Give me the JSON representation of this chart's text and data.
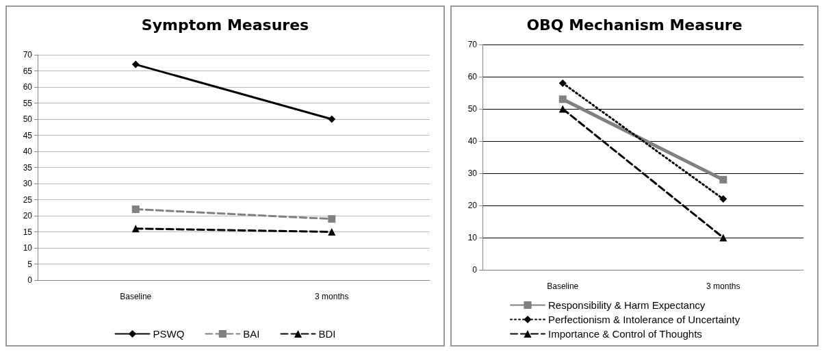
{
  "chart_data": [
    {
      "type": "line",
      "title": "Symptom Measures",
      "categories": [
        "Baseline",
        "3 months"
      ],
      "ylim": [
        0,
        70
      ],
      "yticks": [
        0,
        5,
        10,
        15,
        20,
        25,
        30,
        35,
        40,
        45,
        50,
        55,
        60,
        65,
        70
      ],
      "grid": "y",
      "legend": "bottom",
      "series": [
        {
          "name": "PSWQ",
          "color": "#000000",
          "values": [
            67,
            50
          ],
          "marker": "diamond",
          "line_style": "solid"
        },
        {
          "name": "BAI",
          "color": "#808080",
          "values": [
            22,
            19
          ],
          "marker": "square",
          "line_style": "dashed"
        },
        {
          "name": "BDI",
          "color": "#000000",
          "values": [
            16,
            15
          ],
          "marker": "triangle",
          "line_style": "dashed"
        }
      ]
    },
    {
      "type": "line",
      "title": "OBQ Mechanism Measure",
      "categories": [
        "Baseline",
        "3 months"
      ],
      "ylim": [
        0,
        70
      ],
      "yticks": [
        0,
        10,
        20,
        30,
        40,
        50,
        60,
        70
      ],
      "grid": "y",
      "legend": "bottom",
      "series": [
        {
          "name": "Responsibility & Harm Expectancy",
          "color": "#808080",
          "values": [
            53,
            28
          ],
          "marker": "square",
          "line_style": "solid"
        },
        {
          "name": "Perfectionism & Intolerance of Uncertainty",
          "color": "#000000",
          "values": [
            58,
            22
          ],
          "marker": "diamond",
          "line_style": "dotted"
        },
        {
          "name": "Importance & Control of Thoughts",
          "color": "#000000",
          "values": [
            50,
            10
          ],
          "marker": "triangle",
          "line_style": "dashed"
        }
      ]
    }
  ]
}
